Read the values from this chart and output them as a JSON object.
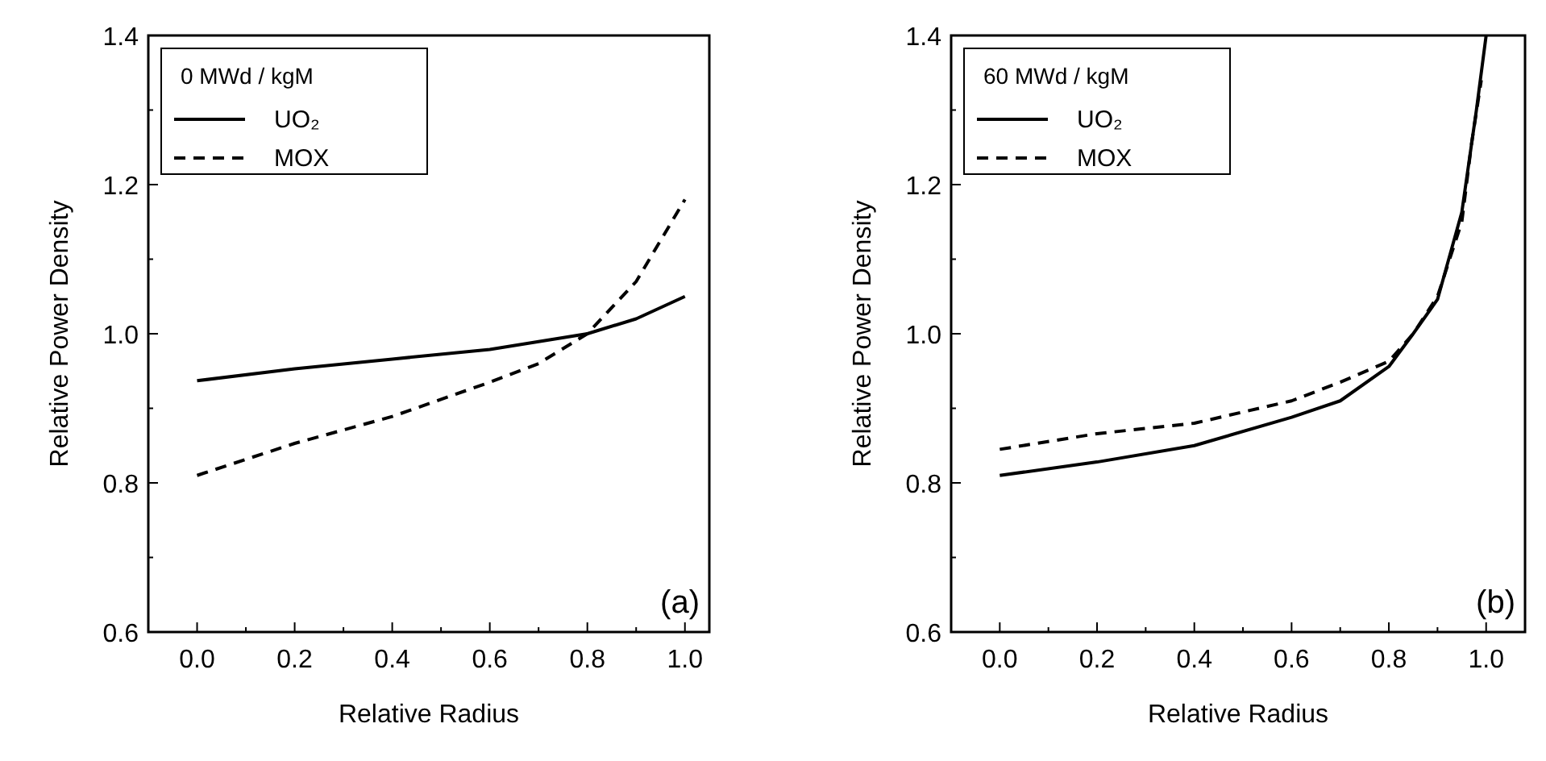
{
  "chart_data": [
    {
      "type": "line",
      "xlabel": "Relative Radius",
      "ylabel": "Relative Power Density",
      "legend_title": "0  MWd / kgM",
      "legend": "top left",
      "grid": false,
      "xlim": [
        -0.1,
        1.05
      ],
      "ylim": [
        0.6,
        1.4
      ],
      "xticks": [
        {
          "value": 0.0,
          "label": "0.0"
        },
        {
          "value": 0.1,
          "label": null
        },
        {
          "value": 0.2,
          "label": "0.2"
        },
        {
          "value": 0.3,
          "label": null
        },
        {
          "value": 0.4,
          "label": "0.4"
        },
        {
          "value": 0.5,
          "label": null
        },
        {
          "value": 0.6,
          "label": "0.6"
        },
        {
          "value": 0.7,
          "label": null
        },
        {
          "value": 0.8,
          "label": "0.8"
        },
        {
          "value": 0.9,
          "label": null
        },
        {
          "value": 1.0,
          "label": "1.0"
        }
      ],
      "yticks": [
        {
          "value": 0.6,
          "label": "0.6"
        },
        {
          "value": 0.7,
          "label": null
        },
        {
          "value": 0.8,
          "label": "0.8"
        },
        {
          "value": 0.9,
          "label": null
        },
        {
          "value": 1.0,
          "label": "1.0"
        },
        {
          "value": 1.1,
          "label": null
        },
        {
          "value": 1.2,
          "label": "1.2"
        },
        {
          "value": 1.3,
          "label": null
        },
        {
          "value": 1.4,
          "label": "1.4"
        }
      ],
      "annotations": [
        "(a)"
      ],
      "series": [
        {
          "name": "UO₂",
          "color": "#000000",
          "line_style": "solid",
          "x": [
            0,
            0.2,
            0.4,
            0.6,
            0.8,
            0.9,
            1.0
          ],
          "values": [
            0.937,
            0.953,
            0.966,
            0.979,
            1.0,
            1.02,
            1.05
          ]
        },
        {
          "name": "MOX",
          "color": "#000000",
          "line_style": "dashed",
          "x": [
            0,
            0.2,
            0.4,
            0.6,
            0.7,
            0.8,
            0.9,
            1.0
          ],
          "values": [
            0.81,
            0.853,
            0.889,
            0.935,
            0.96,
            1.0,
            1.07,
            1.18
          ]
        }
      ]
    },
    {
      "type": "line",
      "xlabel": "Relative Radius",
      "ylabel": "Relative Power Density",
      "legend_title": "60  MWd / kgM",
      "legend": "top left",
      "grid": false,
      "xlim": [
        -0.1,
        1.08
      ],
      "ylim": [
        0.6,
        1.4
      ],
      "xticks": [
        {
          "value": 0.0,
          "label": "0.0"
        },
        {
          "value": 0.1,
          "label": null
        },
        {
          "value": 0.2,
          "label": "0.2"
        },
        {
          "value": 0.3,
          "label": null
        },
        {
          "value": 0.4,
          "label": "0.4"
        },
        {
          "value": 0.5,
          "label": null
        },
        {
          "value": 0.6,
          "label": "0.6"
        },
        {
          "value": 0.7,
          "label": null
        },
        {
          "value": 0.8,
          "label": "0.8"
        },
        {
          "value": 0.9,
          "label": null
        },
        {
          "value": 1.0,
          "label": "1.0"
        }
      ],
      "yticks": [
        {
          "value": 0.6,
          "label": "0.6"
        },
        {
          "value": 0.7,
          "label": null
        },
        {
          "value": 0.8,
          "label": "0.8"
        },
        {
          "value": 0.9,
          "label": null
        },
        {
          "value": 1.0,
          "label": "1.0"
        },
        {
          "value": 1.1,
          "label": null
        },
        {
          "value": 1.2,
          "label": "1.2"
        },
        {
          "value": 1.3,
          "label": null
        },
        {
          "value": 1.4,
          "label": "1.4"
        }
      ],
      "annotations": [
        "(b)"
      ],
      "series": [
        {
          "name": "UO₂",
          "color": "#000000",
          "line_style": "solid",
          "x": [
            0,
            0.2,
            0.4,
            0.6,
            0.7,
            0.8,
            0.85,
            0.9,
            0.95,
            0.98,
            1.0
          ],
          "values": [
            0.81,
            0.828,
            0.85,
            0.888,
            0.91,
            0.956,
            1.0,
            1.046,
            1.163,
            1.3,
            1.4
          ]
        },
        {
          "name": "MOX",
          "color": "#000000",
          "line_style": "dashed",
          "x": [
            0,
            0.2,
            0.4,
            0.6,
            0.7,
            0.8,
            0.85,
            0.9,
            0.95,
            0.97,
            0.99
          ],
          "values": [
            0.845,
            0.866,
            0.88,
            0.91,
            0.935,
            0.963,
            1.0,
            1.05,
            1.15,
            1.255,
            1.34
          ]
        }
      ]
    }
  ]
}
